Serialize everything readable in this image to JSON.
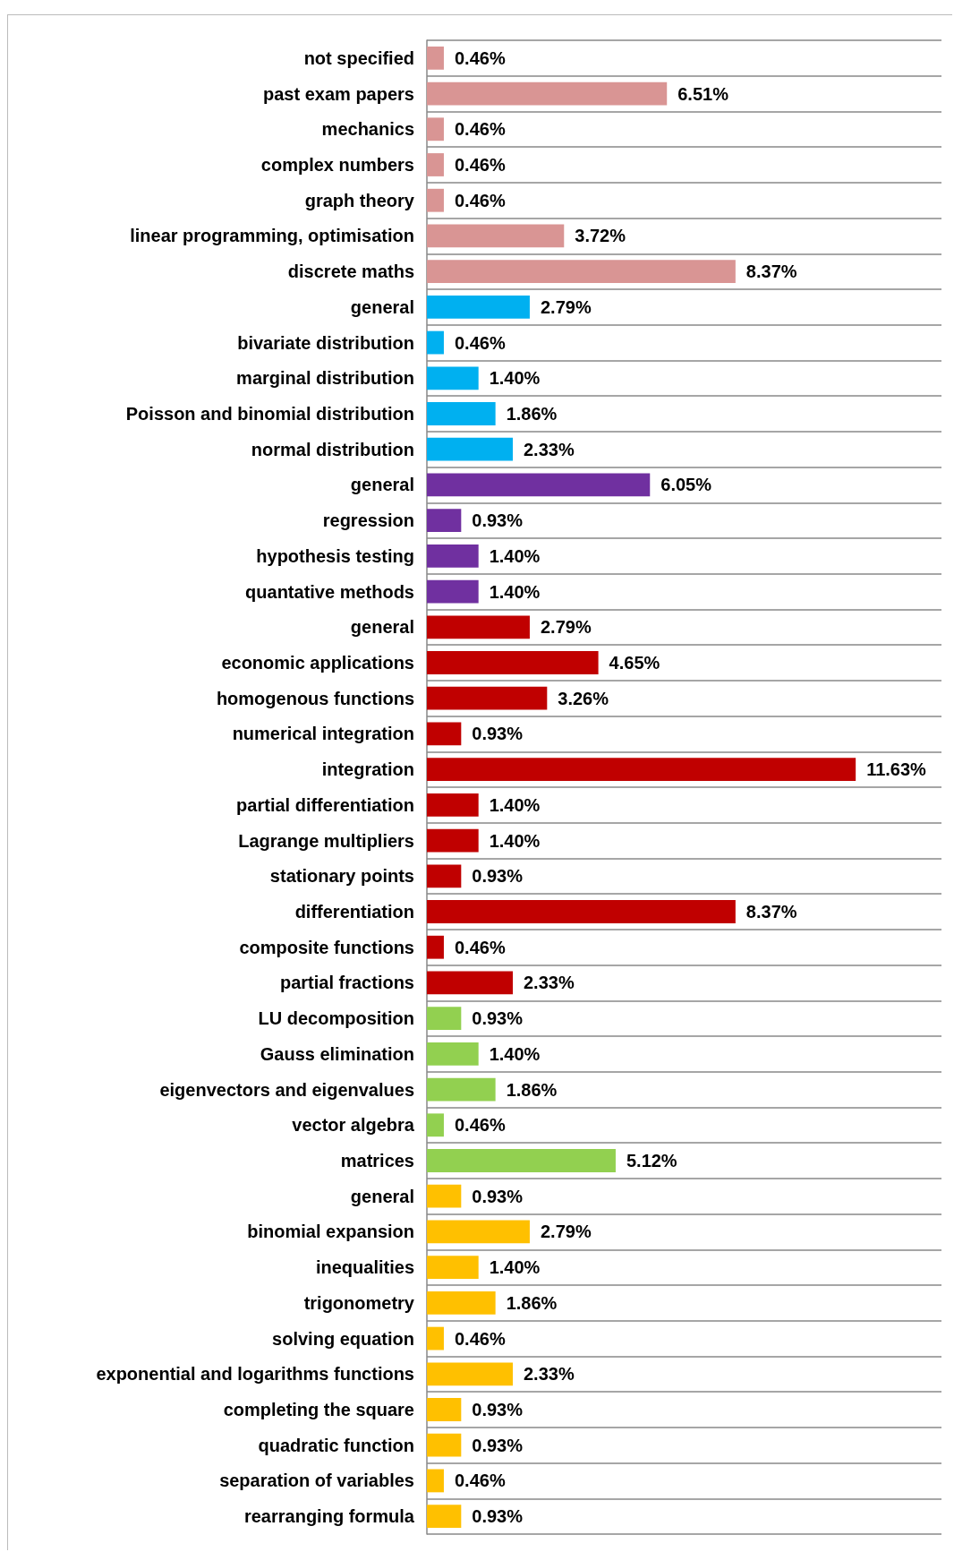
{
  "chart_data": {
    "type": "bar",
    "orientation": "horizontal",
    "grid": "y",
    "categories": [
      "not specified",
      "past exam papers",
      "mechanics",
      "complex numbers",
      "graph theory",
      "linear programming, optimisation",
      "discrete maths",
      "general",
      "bivariate distribution",
      "marginal distribution",
      "Poisson and binomial distribution",
      "normal distribution",
      "general",
      "regression",
      "hypothesis testing",
      "quantative methods",
      "general",
      "economic applications",
      "homogenous functions",
      "numerical integration",
      "integration",
      "partial differentiation",
      "Lagrange multipliers",
      "stationary points",
      "differentiation",
      "composite functions",
      "partial fractions",
      "LU decomposition",
      "Gauss elimination",
      "eigenvectors and eigenvalues",
      "vector algebra",
      "matrices",
      "general",
      "binomial expansion",
      "inequalities",
      "trigonometry",
      "solving equation",
      "exponential and logarithms functions",
      "completing the square",
      "quadratic function",
      "separation of variables",
      "rearranging formula"
    ],
    "values": [
      0.46,
      6.51,
      0.46,
      0.46,
      0.46,
      3.72,
      8.37,
      2.79,
      0.46,
      1.4,
      1.86,
      2.33,
      6.05,
      0.93,
      1.4,
      1.4,
      2.79,
      4.65,
      3.26,
      0.93,
      11.63,
      1.4,
      1.4,
      0.93,
      8.37,
      0.46,
      2.33,
      0.93,
      1.4,
      1.86,
      0.46,
      5.12,
      0.93,
      2.79,
      1.4,
      1.86,
      0.46,
      2.33,
      0.93,
      0.93,
      0.46,
      0.93
    ],
    "value_labels": [
      "0.46%",
      "6.51%",
      "0.46%",
      "0.46%",
      "0.46%",
      "3.72%",
      "8.37%",
      "2.79%",
      "0.46%",
      "1.40%",
      "1.86%",
      "2.33%",
      "6.05%",
      "0.93%",
      "1.40%",
      "1.40%",
      "2.79%",
      "4.65%",
      "3.26%",
      "0.93%",
      "11.63%",
      "1.40%",
      "1.40%",
      "0.93%",
      "8.37%",
      "0.46%",
      "2.33%",
      "0.93%",
      "1.40%",
      "1.86%",
      "0.46%",
      "5.12%",
      "0.93%",
      "2.79%",
      "1.40%",
      "1.86%",
      "0.46%",
      "2.33%",
      "0.93%",
      "0.93%",
      "0.46%",
      "0.93%"
    ],
    "colors": [
      "#d99594",
      "#d99594",
      "#d99594",
      "#d99594",
      "#d99594",
      "#d99594",
      "#d99594",
      "#00b0f0",
      "#00b0f0",
      "#00b0f0",
      "#00b0f0",
      "#00b0f0",
      "#7030a0",
      "#7030a0",
      "#7030a0",
      "#7030a0",
      "#c00000",
      "#c00000",
      "#c00000",
      "#c00000",
      "#c00000",
      "#c00000",
      "#c00000",
      "#c00000",
      "#c00000",
      "#c00000",
      "#c00000",
      "#92d050",
      "#92d050",
      "#92d050",
      "#92d050",
      "#92d050",
      "#ffc000",
      "#ffc000",
      "#ffc000",
      "#ffc000",
      "#ffc000",
      "#ffc000",
      "#ffc000",
      "#ffc000",
      "#ffc000",
      "#ffc000"
    ]
  }
}
